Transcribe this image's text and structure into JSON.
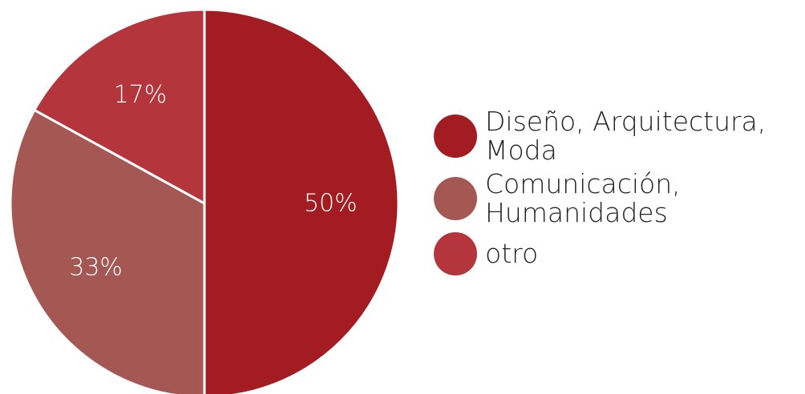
{
  "chart_data": {
    "type": "pie",
    "slices": [
      {
        "label": "Diseño, Arquitectura,\nModa",
        "value": 50,
        "display": "50%",
        "color": "#a31c22"
      },
      {
        "label": "Comunicación,\nHumanidades",
        "value": 33,
        "display": "33%",
        "color": "#a55753"
      },
      {
        "label": "otro",
        "value": 17,
        "display": "17%",
        "color": "#b5353d"
      }
    ],
    "legend_position": "right"
  }
}
